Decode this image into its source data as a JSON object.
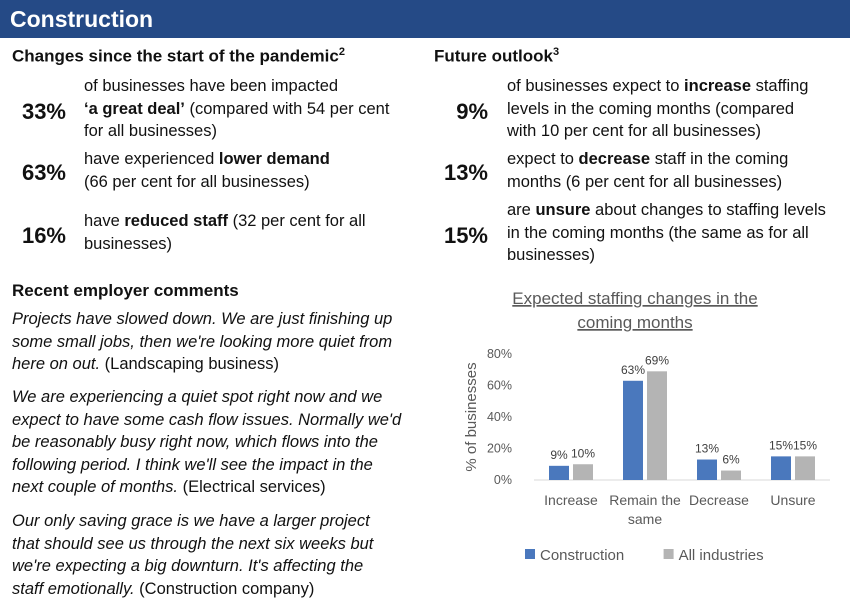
{
  "banner": {
    "title": "Construction"
  },
  "left": {
    "heading": "Changes since the start of the pandemic",
    "heading_sup": "2",
    "stats": [
      {
        "pct": "33%",
        "lines": [
          [
            {
              "t": "of businesses have been impacted",
              "b": false
            }
          ],
          [
            {
              "t": "‘a great deal’",
              "b": true
            },
            {
              "t": " (compared with 54 per cent",
              "b": false
            }
          ],
          [
            {
              "t": "for all businesses)",
              "b": false
            }
          ]
        ]
      },
      {
        "pct": "63%",
        "lines": [
          [
            {
              "t": "have experienced ",
              "b": false
            },
            {
              "t": "lower demand",
              "b": true
            }
          ],
          [
            {
              "t": "(66 per cent for all businesses)",
              "b": false
            }
          ]
        ]
      },
      {
        "pct": "16%",
        "lines": [
          [
            {
              "t": "have ",
              "b": false
            },
            {
              "t": "reduced staff",
              "b": true
            },
            {
              "t": " (32 per cent for all",
              "b": false
            }
          ],
          [
            {
              "t": "businesses)",
              "b": false
            }
          ]
        ]
      }
    ],
    "comments_heading": "Recent employer comments",
    "comments": [
      {
        "lines": [
          [
            {
              "t": "Projects have slowed down. We are just finishing up",
              "i": true
            }
          ],
          [
            {
              "t": "some small jobs, then we're looking more quiet from",
              "i": true
            }
          ],
          [
            {
              "t": "here on out.",
              "i": true
            },
            {
              "t": " (Landscaping business)",
              "i": false
            }
          ]
        ]
      },
      {
        "lines": [
          [
            {
              "t": "We are experiencing a quiet spot right now and we",
              "i": true
            }
          ],
          [
            {
              "t": "expect to have some cash flow issues. Normally we'd",
              "i": true
            }
          ],
          [
            {
              "t": "be reasonably busy right now, which flows into the",
              "i": true
            }
          ],
          [
            {
              "t": "following period. I think we'll see the impact in the",
              "i": true
            }
          ],
          [
            {
              "t": "next couple of months.",
              "i": true
            },
            {
              "t": " (Electrical services)",
              "i": false
            }
          ]
        ]
      },
      {
        "lines": [
          [
            {
              "t": "Our only saving grace is we have a larger project",
              "i": true
            }
          ],
          [
            {
              "t": "that should see us through the next six weeks but",
              "i": true
            }
          ],
          [
            {
              "t": "we're expecting a big downturn. It's affecting the",
              "i": true
            }
          ],
          [
            {
              "t": "staff emotionally.",
              "i": true
            },
            {
              "t": " (Construction company)",
              "i": false
            }
          ]
        ]
      }
    ]
  },
  "right": {
    "heading": "Future outlook",
    "heading_sup": "3",
    "stats": [
      {
        "pct": "9%",
        "lines": [
          [
            {
              "t": "of businesses expect to ",
              "b": false
            },
            {
              "t": "increase",
              "b": true
            },
            {
              "t": " staffing",
              "b": false
            }
          ],
          [
            {
              "t": "levels in the coming months (compared",
              "b": false
            }
          ],
          [
            {
              "t": "with 10 per cent for all businesses)",
              "b": false
            }
          ]
        ]
      },
      {
        "pct": "13%",
        "lines": [
          [
            {
              "t": "expect to ",
              "b": false
            },
            {
              "t": "decrease",
              "b": true
            },
            {
              "t": " staff in the coming",
              "b": false
            }
          ],
          [
            {
              "t": "months (6 per cent for all businesses)",
              "b": false
            }
          ]
        ]
      },
      {
        "pct": "15%",
        "lines": [
          [
            {
              "t": "are ",
              "b": false
            },
            {
              "t": "unsure",
              "b": true
            },
            {
              "t": " about changes to staffing levels",
              "b": false
            }
          ],
          [
            {
              "t": "in the coming months (the same as for all",
              "b": false
            }
          ],
          [
            {
              "t": "businesses)",
              "b": false
            }
          ]
        ]
      }
    ]
  },
  "chart_data": {
    "type": "bar",
    "title_lines": [
      "Expected staffing changes in the",
      "coming months"
    ],
    "categories": [
      [
        "Increase"
      ],
      [
        "Remain the",
        "same"
      ],
      [
        "Decrease"
      ],
      [
        "Unsure"
      ]
    ],
    "series": [
      {
        "name": "Construction",
        "color": "#4a78bd",
        "values": [
          9,
          63,
          13,
          15
        ]
      },
      {
        "name": "All industries",
        "color": "#b4b4b4",
        "values": [
          10,
          69,
          6,
          15
        ]
      }
    ],
    "ylabel": "% of businesses",
    "yticks": [
      "0%",
      "20%",
      "40%",
      "60%",
      "80%"
    ],
    "ylim": [
      0,
      80
    ],
    "grid": false,
    "legend": "bottom"
  }
}
